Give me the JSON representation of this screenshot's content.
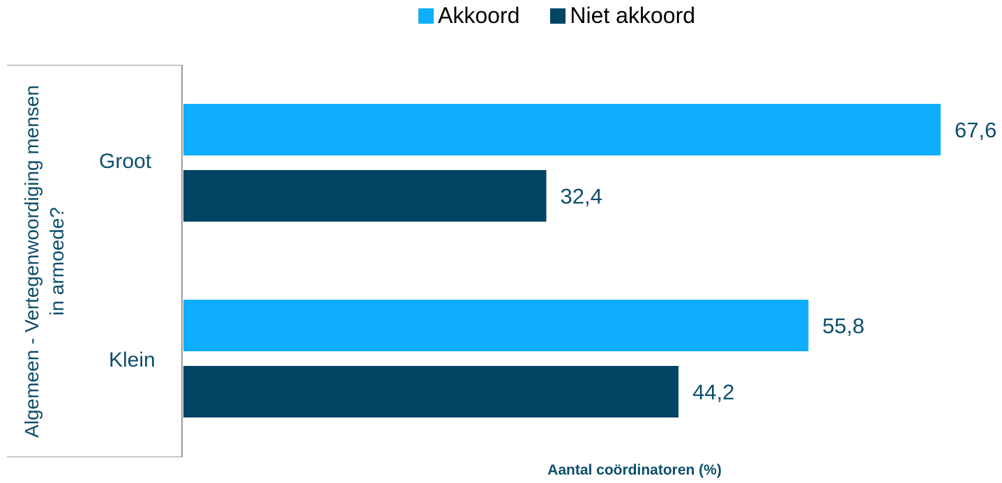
{
  "chart_data": {
    "type": "bar",
    "orientation": "horizontal",
    "group_title": "Algemeen - Vertegenwoordiging mensen in armoede?",
    "categories": [
      "Groot",
      "Klein"
    ],
    "series": [
      {
        "name": "Akkoord",
        "color": "#0eaefc",
        "values": [
          67.6,
          55.8
        ],
        "labels": [
          "67,6",
          "55,8"
        ]
      },
      {
        "name": "Niet akkoord",
        "color": "#024463",
        "values": [
          32.4,
          44.2
        ],
        "labels": [
          "32,4",
          "44,2"
        ]
      }
    ],
    "xlabel": "Aantal coördinatoren (%)",
    "xlim": [
      0,
      100
    ],
    "legend_position": "top",
    "grid": false
  }
}
